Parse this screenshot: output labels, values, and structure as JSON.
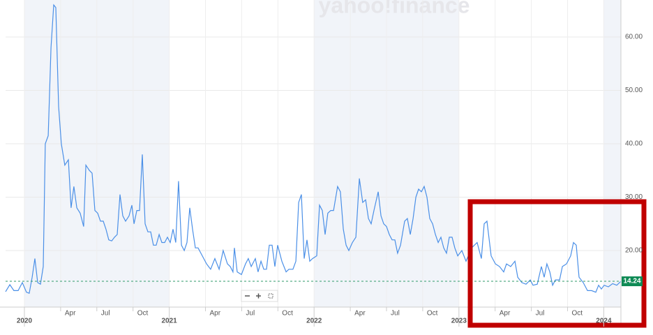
{
  "chart_data": {
    "type": "line",
    "watermark": "yahoo!finance",
    "x": [
      -1.56,
      -1.21,
      -0.87,
      -0.52,
      -0.17,
      0.17,
      0.4,
      0.64,
      0.87,
      1.1,
      1.33,
      1.56,
      1.73,
      1.97,
      2.2,
      2.43,
      2.6,
      2.83,
      3.06,
      3.35,
      3.64,
      3.87,
      4.1,
      4.34,
      4.62,
      4.91,
      5.09,
      5.38,
      5.61,
      5.84,
      6.07,
      6.3,
      6.53,
      6.76,
      6.99,
      7.23,
      7.46,
      7.69,
      7.92,
      8.15,
      8.38,
      8.67,
      8.9,
      9.08,
      9.31,
      9.54,
      9.77,
      10,
      10.23,
      10.46,
      10.69,
      10.92,
      11.16,
      11.39,
      11.62,
      11.85,
      12.08,
      12.31,
      12.54,
      12.77,
      13.01,
      13.24,
      13.47,
      13.7,
      13.93,
      14.16,
      14.39,
      14.74,
      15.09,
      15.43,
      15.78,
      16.13,
      16.47,
      16.82,
      17.05,
      17.28,
      17.4,
      17.63,
      17.98,
      18.32,
      18.55,
      18.79,
      19.13,
      19.36,
      19.6,
      19.83,
      20.06,
      20.29,
      20.52,
      20.75,
      20.98,
      21.33,
      21.68,
      21.91,
      22.25,
      22.49,
      22.72,
      22.95,
      23.18,
      23.41,
      23.64,
      23.87,
      24.22,
      24.45,
      24.68,
      24.91,
      25.14,
      25.38,
      25.61,
      25.95,
      26.18,
      26.42,
      26.65,
      26.88,
      27.17,
      27.46,
      27.75,
      28.03,
      28.27,
      28.5,
      28.73,
      28.96,
      29.31,
      29.54,
      29.77,
      30,
      30.23,
      30.46,
      30.69,
      30.92,
      31.16,
      31.5,
      31.73,
      31.97,
      32.2,
      32.43,
      32.66,
      32.89,
      33.12,
      33.35,
      33.58,
      33.82,
      34.05,
      34.28,
      34.51,
      34.74,
      34.97,
      35.2,
      35.43,
      35.66,
      35.9,
      36.24,
      36.59,
      37.05,
      37.51,
      37.86,
      38.09,
      38.32,
      38.67,
      39.02,
      39.36,
      39.71,
      39.94,
      40.29,
      40.64,
      40.87,
      41.21,
      41.56,
      41.91,
      42.14,
      42.49,
      42.83,
      43.06,
      43.29,
      43.53,
      43.76,
      43.99,
      44.34,
      44.57,
      44.91,
      45.26,
      45.49,
      45.72,
      45.95,
      46.3,
      46.65,
      46.99,
      47.34,
      47.57,
      47.8,
      48.03,
      48.38,
      48.73,
      49.08,
      49.42
    ],
    "values": [
      12.3,
      13.6,
      12.5,
      12.5,
      14,
      12.2,
      12,
      15,
      18.5,
      14,
      13.7,
      17,
      40,
      41.5,
      58,
      66,
      65.5,
      47,
      40,
      36,
      37,
      28,
      32,
      28,
      27,
      24.5,
      36,
      35,
      34.5,
      27.5,
      27,
      25.5,
      25.5,
      24,
      22,
      21.8,
      22.5,
      23,
      30.5,
      26.5,
      25.5,
      26.5,
      28.5,
      25,
      27.5,
      27.5,
      38,
      25,
      23.5,
      23.5,
      21,
      21,
      23,
      21.5,
      21.5,
      22.5,
      21.5,
      24,
      21.5,
      33,
      21,
      20,
      21.5,
      28,
      24,
      20.5,
      20.5,
      19,
      17.5,
      16.5,
      18.5,
      16.5,
      20,
      17.5,
      17,
      16,
      20.5,
      16,
      15.5,
      17.5,
      18.5,
      17,
      18.5,
      16,
      18,
      16.5,
      16.5,
      21,
      21,
      17,
      21,
      18,
      16,
      16.5,
      16.5,
      18,
      29,
      30.5,
      18.5,
      22,
      18,
      18.5,
      19,
      28.5,
      27.5,
      23,
      27,
      27.5,
      27.5,
      32,
      31,
      24,
      21,
      20,
      21.5,
      22.5,
      33.5,
      29,
      29.5,
      26,
      25,
      27.5,
      31,
      26.5,
      25,
      24.5,
      23,
      22,
      22,
      19.5,
      21,
      25.5,
      26,
      23,
      26,
      30,
      31.5,
      31,
      32,
      30,
      26,
      25,
      23,
      21.5,
      22.5,
      20.5,
      19.5,
      22.5,
      22.5,
      20.5,
      19,
      20,
      18,
      20.5,
      21.5,
      18.5,
      25,
      25.5,
      19,
      17.5,
      17,
      16,
      17.5,
      17,
      18,
      15,
      14,
      13.7,
      14.5,
      13.5,
      13.7,
      17,
      15,
      17.5,
      16,
      13.5,
      14.5,
      14.5,
      17,
      17.5,
      19,
      21.5,
      21,
      15,
      14,
      12.5,
      12.5,
      12.2,
      13.5,
      12.8,
      13.5,
      13.2,
      13.8,
      13.5,
      14.24
    ],
    "color": "#4a8fe7",
    "current": 14.24,
    "xlim": [
      -1.56,
      49.42
    ],
    "ylim": [
      9.41,
      66.27
    ],
    "xticks": [
      {
        "value": 0,
        "label": "2020"
      },
      {
        "value": 3,
        "label": "Apr"
      },
      {
        "value": 6,
        "label": "Jul"
      },
      {
        "value": 9,
        "label": "Oct"
      },
      {
        "value": 12,
        "label": "2021"
      },
      {
        "value": 15,
        "label": "Apr"
      },
      {
        "value": 18,
        "label": "Jul"
      },
      {
        "value": 21,
        "label": "Oct"
      },
      {
        "value": 24,
        "label": "2022"
      },
      {
        "value": 27,
        "label": "Apr"
      },
      {
        "value": 30,
        "label": "Jul"
      },
      {
        "value": 33,
        "label": "Oct"
      },
      {
        "value": 36,
        "label": "2023"
      },
      {
        "value": 39,
        "label": "Apr"
      },
      {
        "value": 42,
        "label": "Jul"
      },
      {
        "value": 45,
        "label": "Oct"
      },
      {
        "value": 48,
        "label": "2024"
      }
    ],
    "yticks": [
      {
        "value": 20,
        "label": "20.00"
      },
      {
        "value": 30,
        "label": "30.00"
      },
      {
        "value": 40,
        "label": "40.00"
      },
      {
        "value": 50,
        "label": "50.00"
      },
      {
        "value": 60,
        "label": "60.00"
      }
    ],
    "grid": true
  }
}
